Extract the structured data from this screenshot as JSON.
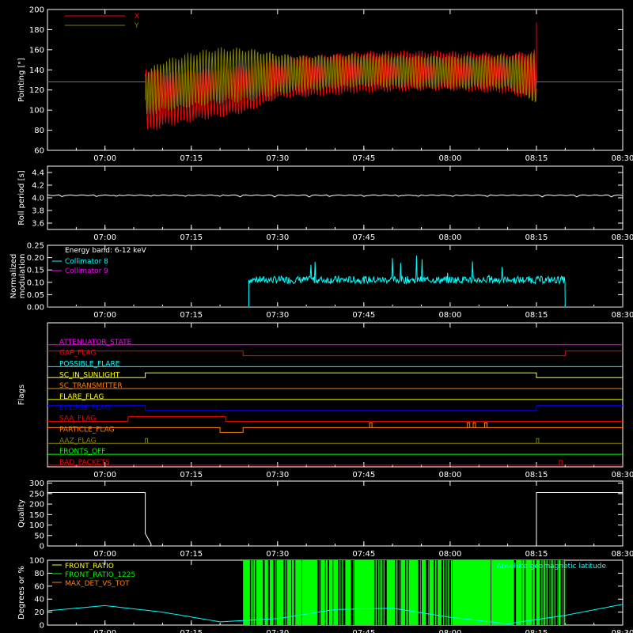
{
  "chart_data": [
    {
      "type": "line",
      "id": "pointing",
      "ylabel": "Pointing [\"]",
      "ylim": [
        60,
        200
      ],
      "yticks": [
        60,
        80,
        100,
        120,
        140,
        160,
        180,
        200
      ],
      "xlim": [
        "06:50",
        "08:30"
      ],
      "xticks": [
        "07:00",
        "07:15",
        "07:30",
        "07:45",
        "08:00",
        "08:15",
        "08:30"
      ],
      "legend": [
        {
          "name": "X",
          "color": "#ff0000"
        },
        {
          "name": "Y",
          "color": "#808000"
        }
      ],
      "series": [
        {
          "name": "X",
          "color": "#ff0000",
          "baseline": 128,
          "active_range": [
            "07:07",
            "08:15"
          ],
          "envelope": {
            "x": [
              "07:07",
              "07:10",
              "07:15",
              "07:20",
              "07:25",
              "07:30",
              "07:35",
              "07:45",
              "08:00",
              "08:10",
              "08:15"
            ],
            "upper": [
              145,
              140,
              142,
              145,
              148,
              152,
              155,
              160,
              159,
              158,
              162
            ],
            "lower": [
              75,
              82,
              88,
              92,
              96,
              110,
              112,
              117,
              118,
              116,
              108
            ]
          }
        },
        {
          "name": "Y",
          "color": "#808000",
          "baseline": 128,
          "active_range": [
            "07:07",
            "08:15"
          ],
          "envelope": {
            "x": [
              "07:07",
              "07:10",
              "07:15",
              "07:20",
              "07:25",
              "07:30",
              "07:35",
              "07:45",
              "08:00",
              "08:10",
              "08:15"
            ],
            "upper": [
              140,
              150,
              158,
              163,
              163,
              158,
              155,
              156,
              155,
              155,
              157
            ],
            "lower": [
              92,
              97,
              100,
              105,
              108,
              115,
              118,
              122,
              121,
              120,
              105
            ]
          }
        }
      ]
    },
    {
      "type": "line",
      "id": "roll",
      "ylabel": "Roll period [s]",
      "ylim": [
        3.5,
        4.5
      ],
      "yticks": [
        3.6,
        3.8,
        4.0,
        4.2,
        4.4
      ],
      "xticks": [
        "07:00",
        "07:15",
        "07:30",
        "07:45",
        "08:00",
        "08:15",
        "08:30"
      ],
      "series": [
        {
          "name": "",
          "color": "#ffffff",
          "value": 4.04
        }
      ]
    },
    {
      "type": "line",
      "id": "modulation",
      "ylabel": "Normalized modulation",
      "ylim": [
        0.0,
        0.25
      ],
      "yticks": [
        0.0,
        0.05,
        0.1,
        0.15,
        0.2,
        0.25
      ],
      "xticks": [
        "07:00",
        "07:15",
        "07:30",
        "07:45",
        "08:00",
        "08:15",
        "08:30"
      ],
      "annotation": "Energy band: 6-12 keV",
      "legend": [
        {
          "name": "Collimator 8",
          "color": "#00ffff"
        },
        {
          "name": "Collimator 9",
          "color": "#ff00ff"
        }
      ],
      "series": [
        {
          "name": "Collimator 8",
          "color": "#00ffff",
          "active_range": [
            "07:25",
            "08:20"
          ],
          "mean": 0.11,
          "spread": 0.015,
          "spike_max": 0.22
        },
        {
          "name": "Collimator 9",
          "color": "#ff00ff",
          "value": 0.0
        }
      ]
    },
    {
      "type": "table",
      "id": "flags",
      "ylabel": "Flags",
      "xticks": [
        "07:00",
        "07:15",
        "07:30",
        "07:45",
        "08:00",
        "08:15",
        "08:30"
      ],
      "flags": [
        {
          "name": "ATTENUATOR_STATE",
          "color": "#ff00ff",
          "segments": []
        },
        {
          "name": "GAP_FLAG",
          "color": "#ff0000",
          "segments": [
            [
              "06:50",
              "07:24",
              1
            ],
            [
              "07:24",
              "08:20",
              0
            ],
            [
              "08:20",
              "08:30",
              1
            ]
          ]
        },
        {
          "name": "POSSIBLE_FLARE",
          "color": "#00ffff",
          "segments": []
        },
        {
          "name": "SC_IN_SUNLIGHT",
          "color": "#ffff00",
          "segments": [
            [
              "06:50",
              "07:07",
              0
            ],
            [
              "07:07",
              "08:15",
              1
            ],
            [
              "08:15",
              "08:30",
              0
            ]
          ]
        },
        {
          "name": "SC_TRANSMITTER",
          "color": "#ff8000",
          "segments": []
        },
        {
          "name": "FLARE_FLAG",
          "color": "#ffff00",
          "segments": []
        },
        {
          "name": "ECLIPSE_FLAG",
          "color": "#0000ff",
          "segments": [
            [
              "06:50",
              "07:07",
              1
            ],
            [
              "07:07",
              "08:15",
              0
            ],
            [
              "08:15",
              "08:30",
              1
            ]
          ]
        },
        {
          "name": "SAA_FLAG",
          "color": "#ff0000",
          "segments": [
            [
              "06:50",
              "07:04",
              0
            ],
            [
              "07:04",
              "07:21",
              1
            ],
            [
              "07:21",
              "08:30",
              0
            ]
          ]
        },
        {
          "name": "PARTICLE_FLAG",
          "color": "#ff8000",
          "segments": [
            [
              "06:50",
              "07:20",
              1
            ],
            [
              "07:20",
              "07:24",
              0
            ],
            [
              "07:24",
              "08:30",
              1
            ]
          ],
          "pulses": [
            "07:46",
            "08:03",
            "08:04",
            "08:06",
            "08:06"
          ]
        },
        {
          "name": "AAZ_FLAG",
          "color": "#808000",
          "segments": [],
          "pulses": [
            "07:07",
            "08:15"
          ]
        },
        {
          "name": "FRONTS_OFF",
          "color": "#00ff00",
          "segments": []
        },
        {
          "name": "BAD_PACKETS",
          "color": "#ff0000",
          "segments": [],
          "pulses": [
            "08:19"
          ]
        }
      ]
    },
    {
      "type": "line",
      "id": "quality",
      "ylabel": "Quality",
      "ylim": [
        0,
        310
      ],
      "yticks": [
        0,
        50,
        100,
        150,
        200,
        250,
        300
      ],
      "xticks": [
        "07:00",
        "07:15",
        "07:30",
        "07:45",
        "08:00",
        "08:15",
        "08:30"
      ],
      "series": [
        {
          "name": "",
          "color": "#ffffff",
          "x": [
            "06:50",
            "07:07",
            "07:07",
            "07:08",
            "07:08",
            "08:15",
            "08:15",
            "08:30"
          ],
          "y": [
            255,
            255,
            60,
            10,
            0,
            0,
            255,
            255
          ]
        }
      ]
    },
    {
      "type": "line",
      "id": "ratios",
      "ylabel": "Degrees or %",
      "ylim": [
        0,
        100
      ],
      "yticks": [
        0,
        20,
        40,
        60,
        80,
        100
      ],
      "xticks": [
        "07:00",
        "07:15",
        "07:30",
        "07:45",
        "08:00",
        "08:15",
        "08:30"
      ],
      "legend": [
        {
          "name": "FRONT_RATIO",
          "color": "#ffff00"
        },
        {
          "name": "FRONT_RATIO_1225",
          "color": "#00ff00"
        },
        {
          "name": "MAX_DET_VS_TOT",
          "color": "#ff8000"
        }
      ],
      "annotation": "Absolute geomagnetic latitude",
      "annotation_color": "#00ffff",
      "bars": {
        "name": "FRONT_RATIO_1225",
        "color": "#00ff00",
        "range": [
          "07:24",
          "08:20"
        ],
        "value": 100
      },
      "latitude": {
        "x": [
          "06:50",
          "07:00",
          "07:10",
          "07:20",
          "07:30",
          "07:40",
          "07:50",
          "08:00",
          "08:10",
          "08:20",
          "08:30"
        ],
        "y": [
          22,
          30,
          20,
          5,
          10,
          24,
          26,
          12,
          2,
          15,
          32
        ]
      }
    }
  ]
}
